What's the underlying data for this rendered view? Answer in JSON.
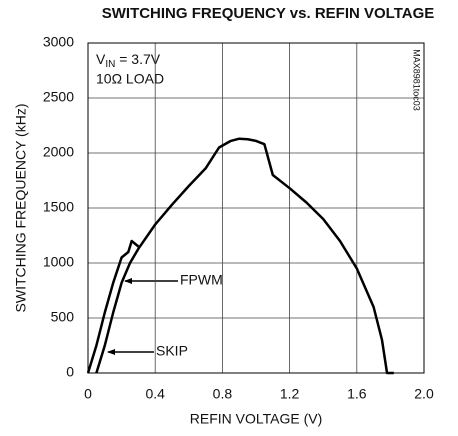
{
  "chart_data": {
    "type": "line",
    "title": "SWITCHING FREQUENCY vs. REFIN VOLTAGE",
    "x_label": "REFIN VOLTAGE (V)",
    "y_label": "SWITCHING FREQUENCY (kHz)",
    "annotations": {
      "condition": {
        "main": "V",
        "subscript": "IN",
        "after": " = 3.7V"
      },
      "load": "10Ω LOAD",
      "code": "MAX8981toc03"
    },
    "series": [
      {
        "name": "FPWM",
        "color": "#000000",
        "x": [
          0,
          0.05,
          0.1,
          0.15,
          0.2,
          0.24,
          0.26,
          0.3
        ],
        "values": [
          0,
          250,
          550,
          820,
          1050,
          1100,
          1200,
          1150
        ]
      },
      {
        "name": "SKIP",
        "color": "#000000",
        "x": [
          0.05,
          0.1,
          0.15,
          0.2,
          0.25,
          0.3,
          0.4,
          0.5,
          0.6,
          0.7,
          0.78,
          0.85,
          0.9,
          0.95,
          1.0,
          1.05,
          1.1,
          1.2,
          1.3,
          1.4,
          1.5,
          1.6,
          1.7,
          1.75,
          1.78,
          1.82
        ],
        "values": [
          0,
          250,
          550,
          820,
          1000,
          1130,
          1350,
          1530,
          1700,
          1860,
          2050,
          2110,
          2130,
          2125,
          2110,
          2080,
          1800,
          1680,
          1550,
          1400,
          1200,
          950,
          600,
          300,
          0,
          0
        ]
      }
    ],
    "xlim": [
      0,
      2
    ],
    "ylim": [
      0,
      3000
    ],
    "xticks": [
      0,
      0.4,
      0.8,
      1.2,
      1.6,
      {
        "value": 2,
        "label": "2.0"
      }
    ],
    "yticks": [
      0,
      500,
      1000,
      1500,
      2000,
      2500,
      3000
    ],
    "grid": true
  }
}
